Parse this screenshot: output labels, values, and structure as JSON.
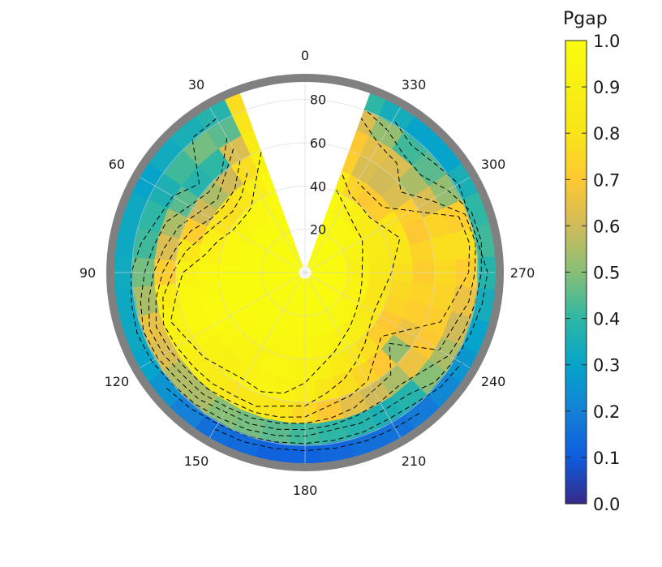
{
  "chart_data": {
    "type": "heatmap",
    "subtype": "polar-filled-contour",
    "colormap": "parula",
    "grid": true,
    "angle_direction": "counterclockwise",
    "angle_zero": "top",
    "angle_ticks": [
      0,
      30,
      60,
      90,
      120,
      150,
      180,
      210,
      240,
      270,
      300,
      330
    ],
    "radial_ticks": [
      20,
      40,
      60,
      80
    ],
    "radial_range": [
      0,
      90
    ],
    "contour_style": "dashed-black",
    "gap_sector_deg": [
      340,
      20
    ],
    "colorbar": {
      "title": "Pgap",
      "range": [
        0.0,
        1.0
      ],
      "ticks": [
        "1.0",
        "0.9",
        "0.8",
        "0.7",
        "0.6",
        "0.5",
        "0.4",
        "0.3",
        "0.2",
        "0.1",
        "0.0"
      ],
      "placement": "right"
    },
    "azimuths": [
      20,
      30,
      40,
      50,
      60,
      70,
      80,
      90,
      100,
      110,
      120,
      130,
      140,
      150,
      160,
      170,
      180,
      190,
      200,
      210,
      220,
      230,
      240,
      250,
      260,
      270,
      280,
      290,
      300,
      310,
      320,
      330,
      340
    ],
    "zenith_angles": [
      5,
      15,
      25,
      35,
      45,
      55,
      65,
      75,
      85
    ],
    "pgap_by_azimuth": [
      [
        1.0,
        1.0,
        1.0,
        0.99,
        0.97,
        0.93,
        0.86,
        0.8,
        0.77
      ],
      [
        1.0,
        1.0,
        1.0,
        0.97,
        0.9,
        0.78,
        0.62,
        0.45,
        0.38
      ],
      [
        1.0,
        1.0,
        1.0,
        0.95,
        0.82,
        0.6,
        0.4,
        0.48,
        0.35
      ],
      [
        1.0,
        1.0,
        1.0,
        0.95,
        0.78,
        0.55,
        0.38,
        0.42,
        0.33
      ],
      [
        1.0,
        1.0,
        1.0,
        0.96,
        0.8,
        0.6,
        0.45,
        0.36,
        0.3
      ],
      [
        1.0,
        1.0,
        1.0,
        0.97,
        0.88,
        0.72,
        0.55,
        0.4,
        0.32
      ],
      [
        1.0,
        1.0,
        1.0,
        0.98,
        0.92,
        0.82,
        0.62,
        0.42,
        0.32
      ],
      [
        1.0,
        1.0,
        1.0,
        1.0,
        0.96,
        0.93,
        0.72,
        0.48,
        0.33
      ],
      [
        1.0,
        1.0,
        1.0,
        1.0,
        0.98,
        0.96,
        0.85,
        0.55,
        0.32
      ],
      [
        1.0,
        1.0,
        1.0,
        1.0,
        0.99,
        0.98,
        0.93,
        0.65,
        0.32
      ],
      [
        1.0,
        1.0,
        1.0,
        1.0,
        0.99,
        0.96,
        0.9,
        0.62,
        0.3
      ],
      [
        1.0,
        1.0,
        1.0,
        0.98,
        0.95,
        0.93,
        0.88,
        0.56,
        0.25
      ],
      [
        1.0,
        1.0,
        1.0,
        0.98,
        0.94,
        0.9,
        0.86,
        0.55,
        0.2
      ],
      [
        1.0,
        1.0,
        1.0,
        0.97,
        0.93,
        0.92,
        0.82,
        0.5,
        0.15
      ],
      [
        1.0,
        1.0,
        0.98,
        0.96,
        0.95,
        0.94,
        0.83,
        0.48,
        0.14
      ],
      [
        1.0,
        1.0,
        0.98,
        0.96,
        0.95,
        0.92,
        0.8,
        0.45,
        0.12
      ],
      [
        1.0,
        1.0,
        0.98,
        0.95,
        0.93,
        0.88,
        0.76,
        0.42,
        0.12
      ],
      [
        1.0,
        1.0,
        0.97,
        0.94,
        0.9,
        0.82,
        0.7,
        0.4,
        0.13
      ],
      [
        1.0,
        1.0,
        0.97,
        0.93,
        0.86,
        0.78,
        0.64,
        0.38,
        0.15
      ],
      [
        1.0,
        1.0,
        0.97,
        0.9,
        0.82,
        0.74,
        0.6,
        0.36,
        0.16
      ],
      [
        1.0,
        1.0,
        0.96,
        0.88,
        0.78,
        0.7,
        0.55,
        0.38,
        0.18
      ],
      [
        1.0,
        0.99,
        0.95,
        0.85,
        0.72,
        0.52,
        0.66,
        0.5,
        0.22
      ],
      [
        1.0,
        0.99,
        0.94,
        0.82,
        0.7,
        0.66,
        0.7,
        0.55,
        0.26
      ],
      [
        1.0,
        0.99,
        0.93,
        0.8,
        0.74,
        0.72,
        0.72,
        0.6,
        0.3
      ],
      [
        1.0,
        0.98,
        0.92,
        0.8,
        0.76,
        0.74,
        0.74,
        0.66,
        0.34
      ],
      [
        1.0,
        0.98,
        0.9,
        0.82,
        0.78,
        0.72,
        0.76,
        0.72,
        0.38
      ],
      [
        1.0,
        0.98,
        0.9,
        0.84,
        0.8,
        0.74,
        0.78,
        0.78,
        0.42
      ],
      [
        1.0,
        0.99,
        0.92,
        0.86,
        0.82,
        0.7,
        0.74,
        0.72,
        0.4
      ],
      [
        1.0,
        1.0,
        0.95,
        0.86,
        0.8,
        0.72,
        0.62,
        0.52,
        0.35
      ],
      [
        1.0,
        1.0,
        0.96,
        0.86,
        0.72,
        0.62,
        0.55,
        0.45,
        0.3
      ],
      [
        1.0,
        1.0,
        0.97,
        0.9,
        0.7,
        0.6,
        0.62,
        0.42,
        0.3
      ],
      [
        1.0,
        1.0,
        0.98,
        0.92,
        0.74,
        0.62,
        0.64,
        0.52,
        0.34
      ],
      [
        1.0,
        1.0,
        1.0,
        0.97,
        0.86,
        0.72,
        0.7,
        0.62,
        0.4
      ]
    ]
  },
  "colors": {
    "ring": "#808080",
    "grid": "#d6d6d6",
    "contour": "#000000"
  }
}
